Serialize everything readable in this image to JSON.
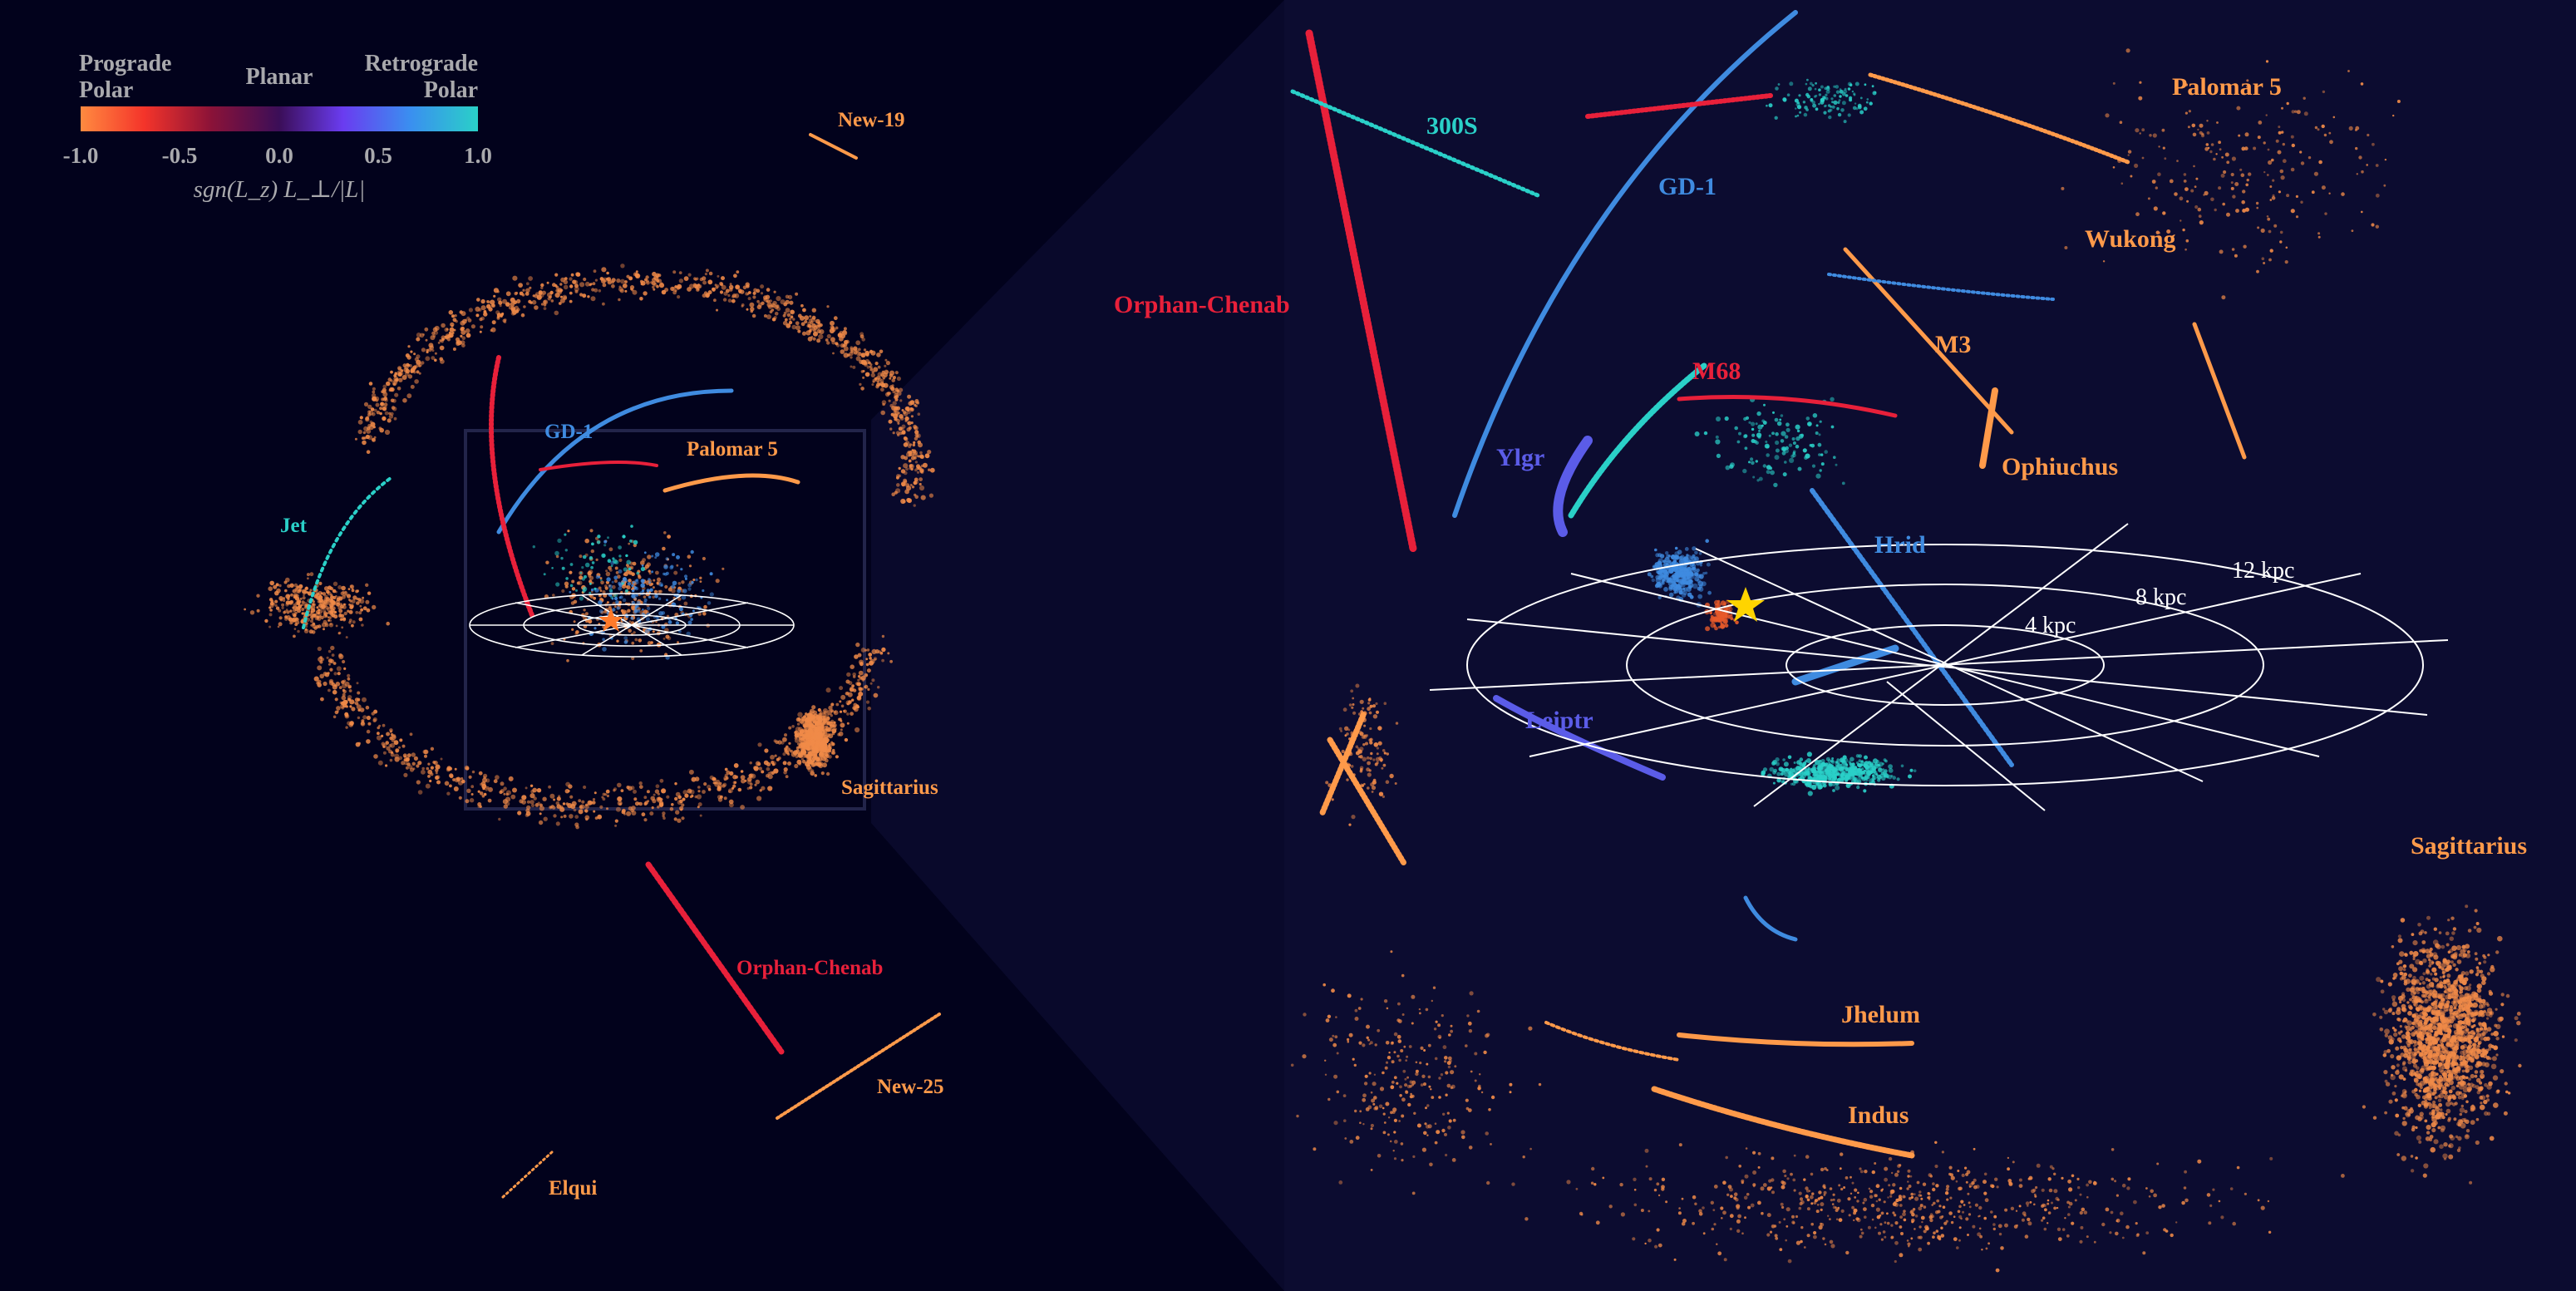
{
  "colorbar": {
    "top_labels": {
      "left_line1": "Prograde",
      "left_line2": "Polar",
      "center": "Planar",
      "right_line1": "Retrograde",
      "right_line2": "Polar"
    },
    "ticks": [
      "-1.0",
      "-0.5",
      "0.0",
      "0.5",
      "1.0"
    ],
    "axis_label": "sgn(L_z) L_⊥/|L|",
    "gradient_colors": [
      "#ff8a40",
      "#f4342a",
      "#8a1238",
      "#3b0e58",
      "#6a3cf0",
      "#3a8ff0",
      "#2ad0c8"
    ],
    "text_color": "#a9a9ad"
  },
  "left_panel": {
    "stream_labels": [
      {
        "name": "New-19",
        "color": "#ff9a4a"
      },
      {
        "name": "GD-1",
        "color": "#3f8be0"
      },
      {
        "name": "Palomar 5",
        "color": "#ff9a4a"
      },
      {
        "name": "Jet",
        "color": "#2ad0c8"
      },
      {
        "name": "Sagittarius",
        "color": "#ff9a4a"
      },
      {
        "name": "Orphan-Chenab",
        "color": "#e8203a"
      },
      {
        "name": "New-25",
        "color": "#ff9a4a"
      },
      {
        "name": "Elqui",
        "color": "#ff9a4a"
      }
    ]
  },
  "right_panel": {
    "stream_labels": [
      {
        "name": "300S",
        "color": "#2ad0c8"
      },
      {
        "name": "Palomar 5",
        "color": "#ff9a4a"
      },
      {
        "name": "GD-1",
        "color": "#3f8be0"
      },
      {
        "name": "Wukong",
        "color": "#ff9a4a"
      },
      {
        "name": "Orphan-Chenab",
        "color": "#e8203a"
      },
      {
        "name": "M3",
        "color": "#ff9a4a"
      },
      {
        "name": "M68",
        "color": "#e8203a"
      },
      {
        "name": "Ylgr",
        "color": "#5b5ce8"
      },
      {
        "name": "Ophiuchus",
        "color": "#ff9a4a"
      },
      {
        "name": "Hrid",
        "color": "#3f8be0"
      },
      {
        "name": "Leiptr",
        "color": "#5b5ce8"
      },
      {
        "name": "Sagittarius",
        "color": "#ff9a4a"
      },
      {
        "name": "Jhelum",
        "color": "#ff9a4a"
      },
      {
        "name": "Indus",
        "color": "#ff9a4a"
      }
    ],
    "disk_rings": [
      "4 kpc",
      "8 kpc",
      "12 kpc"
    ],
    "sun_color": "#ffd400"
  },
  "background": {
    "outer": "#02021c",
    "zoom": "#0d0d32"
  }
}
